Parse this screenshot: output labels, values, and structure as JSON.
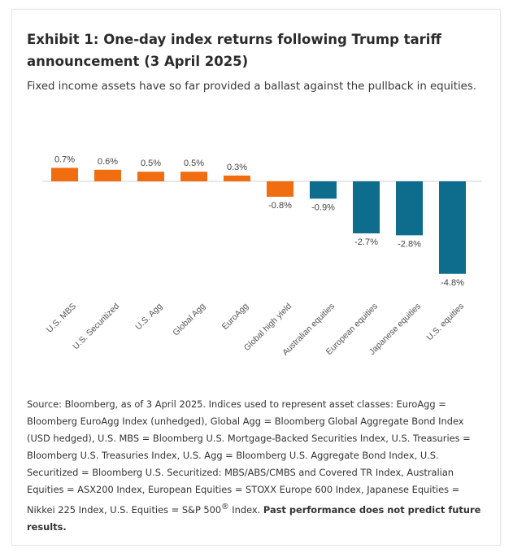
{
  "title": "Exhibit 1: One-day index returns following Trump tariff announcement (3 April 2025)",
  "subtitle": "Fixed income assets have so far provided a ballast against the pullback in equities.",
  "colors": {
    "fixed_income": "#f06d10",
    "equities": "#0e6c8d",
    "baseline": "#d0d0d0"
  },
  "chart_data": {
    "type": "bar",
    "categories": [
      "U.S. MBS",
      "U.S. Securitized",
      "U.S. Agg",
      "Global Agg",
      "EuroAgg",
      "Global high yield",
      "Australian equities",
      "European equities",
      "Japanese equities",
      "U.S. equities"
    ],
    "values": [
      0.7,
      0.6,
      0.5,
      0.5,
      0.3,
      -0.8,
      -0.9,
      -2.7,
      -2.8,
      -4.8
    ],
    "value_labels": [
      "0.7%",
      "0.6%",
      "0.5%",
      "0.5%",
      "0.3%",
      "-0.8%",
      "-0.9%",
      "-2.7%",
      "-2.8%",
      "-4.8%"
    ],
    "bar_groups": [
      "fixed_income",
      "fixed_income",
      "fixed_income",
      "fixed_income",
      "fixed_income",
      "fixed_income",
      "equities",
      "equities",
      "equities",
      "equities"
    ],
    "unit": "%",
    "ylim": [
      -4.8,
      0.7
    ],
    "grid": false,
    "legend": "none"
  },
  "source": {
    "text": "Source: Bloomberg, as of 3 April 2025. Indices used to represent asset classes: EuroAgg = Bloomberg EuroAgg Index (unhedged), Global Agg = Bloomberg Global Aggregate Bond Index (USD hedged), U.S. MBS = Bloomberg U.S. Mortgage-Backed Securities Index, U.S. Treasuries = Bloomberg U.S. Treasuries Index, U.S. Agg = Bloomberg U.S. Aggregate Bond Index, U.S. Securitized = Bloomberg U.S. Securitized: MBS/ABS/CMBS and Covered TR Index, Australian Equities = ASX200 Index, European Equities = STOXX Europe 600 Index, Japanese Equities = Nikkei 225 Index, U.S. Equities = S&P 500",
    "registered": "®",
    "index_suffix": " Index.",
    "disclaimer": "Past performance does not predict future results."
  }
}
